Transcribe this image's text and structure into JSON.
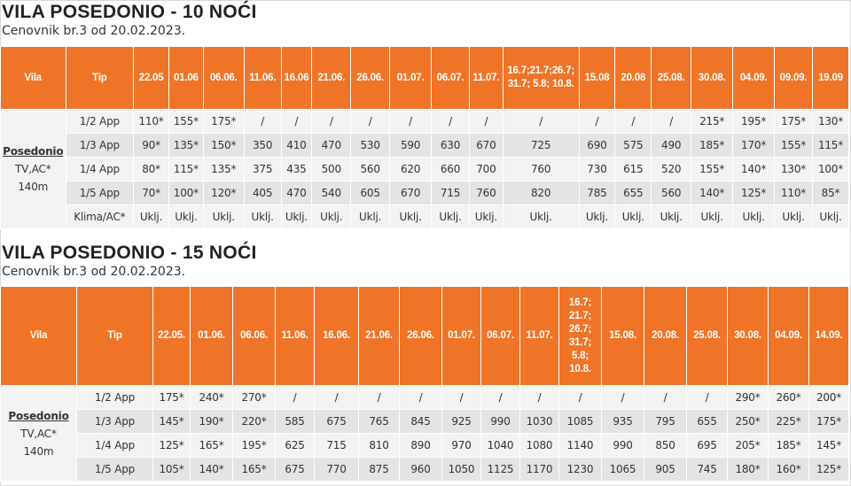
{
  "sections": [
    {
      "title": "VILA POSEDONIO - 10 NOĆI",
      "subtitle": "Cenovnik br.3 od 20.02.2023.",
      "vila_header": "Vila",
      "tip_header": "Tip",
      "dates": [
        "22.05",
        "01.06",
        "06.06.",
        "11.06.",
        "16.06",
        "21.06.",
        "26.06.",
        "01.07.",
        "06.07.",
        "11.07.",
        "16.7;21.7;26.7; 31.7; 5.8; 10.8.",
        "15.08",
        "20.08",
        "25.08.",
        "30.08.",
        "04.09.",
        "09.09.",
        "19.09"
      ],
      "vila": {
        "name": "Posedonio",
        "line2": "TV,AC*",
        "line3": "140m"
      },
      "rows": [
        {
          "tip": "1/2 App",
          "values": [
            "110*",
            "155*",
            "175*",
            "/",
            "/",
            "/",
            "/",
            "/",
            "/",
            "/",
            "/",
            "/",
            "/",
            "/",
            "215*",
            "195*",
            "175*",
            "130*"
          ]
        },
        {
          "tip": "1/3 App",
          "values": [
            "90*",
            "135*",
            "150*",
            "350",
            "410",
            "470",
            "530",
            "590",
            "630",
            "670",
            "725",
            "690",
            "575",
            "490",
            "185*",
            "170*",
            "155*",
            "115*"
          ]
        },
        {
          "tip": "1/4 App",
          "values": [
            "80*",
            "115*",
            "135*",
            "375",
            "435",
            "500",
            "560",
            "620",
            "660",
            "700",
            "760",
            "730",
            "615",
            "520",
            "155*",
            "140*",
            "130*",
            "100*"
          ]
        },
        {
          "tip": "1/5 App",
          "values": [
            "70*",
            "100*",
            "120*",
            "405",
            "470",
            "540",
            "605",
            "670",
            "715",
            "760",
            "820",
            "785",
            "655",
            "560",
            "140*",
            "125*",
            "110*",
            "85*"
          ]
        },
        {
          "tip": "Klima/AC*",
          "values": [
            "Uklj.",
            "Uklj.",
            "Uklj.",
            "Uklj.",
            "Uklj.",
            "Uklj.",
            "Uklj.",
            "Uklj.",
            "Uklj.",
            "Uklj.",
            "Uklj.",
            "Uklj.",
            "Uklj.",
            "Uklj.",
            "Uklj.",
            "Uklj.",
            "Uklj.",
            "Uklj."
          ]
        }
      ]
    },
    {
      "title": "VILA POSEDONIO - 15 NOĆI",
      "subtitle": "Cenovnik br.3 od 20.02.2023.",
      "vila_header": "Vila",
      "tip_header": "Tip",
      "dates": [
        "22.05.",
        "01.06.",
        "06.06.",
        "11.06.",
        "16.06.",
        "21.06.",
        "26.06.",
        "01.07.",
        "06.07.",
        "11.07.",
        "16.7; 21.7; 26.7; 31.7; 5.8; 10.8.",
        "15.08.",
        "20.08.",
        "25.08.",
        "30.08.",
        "04.09.",
        "14.09."
      ],
      "vila": {
        "name": "Posedonio",
        "line2": "TV,AC*",
        "line3": "140m"
      },
      "rows": [
        {
          "tip": "1/2 App",
          "values": [
            "175*",
            "240*",
            "270*",
            "/",
            "/",
            "/",
            "/",
            "/",
            "/",
            "/",
            "/",
            "/",
            "/",
            "/",
            "290*",
            "260*",
            "200*"
          ]
        },
        {
          "tip": "1/3 App",
          "values": [
            "145*",
            "190*",
            "220*",
            "585",
            "675",
            "765",
            "845",
            "925",
            "990",
            "1030",
            "1085",
            "935",
            "795",
            "655",
            "250*",
            "225*",
            "175*"
          ]
        },
        {
          "tip": "1/4 App",
          "values": [
            "125*",
            "165*",
            "195*",
            "625",
            "715",
            "810",
            "890",
            "970",
            "1040",
            "1080",
            "1140",
            "990",
            "850",
            "695",
            "205*",
            "185*",
            "145*"
          ]
        },
        {
          "tip": "1/5 App",
          "values": [
            "105*",
            "140*",
            "165*",
            "675",
            "770",
            "875",
            "960",
            "1050",
            "1125",
            "1170",
            "1230",
            "1065",
            "905",
            "745",
            "180*",
            "160*",
            "125*"
          ]
        }
      ]
    }
  ],
  "colors": {
    "header_bg": "#f07427",
    "row_light": "#f3f3f3",
    "row_dark": "#e4e4e4"
  }
}
